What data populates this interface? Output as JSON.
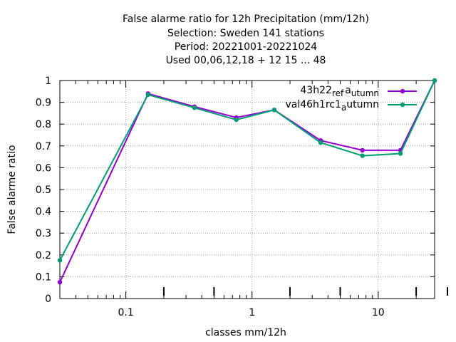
{
  "chart_data": {
    "type": "line",
    "title_lines": [
      "False alarme ratio  for 12h Precipitation (mm/12h)",
      "Selection: Sweden     141 stations",
      "Period: 20221001-20221024",
      "Used  00,06,12,18  + 12 15 ... 48"
    ],
    "xlabel": "classes mm/12h",
    "ylabel": "False alarme ratio",
    "xscale": "log",
    "xlim": [
      0.03,
      28
    ],
    "ylim": [
      0,
      1
    ],
    "grid": true,
    "legend_position": "top-right",
    "yticks": [
      "0",
      "0.1",
      "0.2",
      "0.3",
      "0.4",
      "0.5",
      "0.6",
      "0.7",
      "0.8",
      "0.9",
      "1"
    ],
    "xticks": [
      {
        "value": 0.1,
        "label": "0.1"
      },
      {
        "value": 1,
        "label": "1"
      },
      {
        "value": 10,
        "label": "10"
      }
    ],
    "series": [
      {
        "name": "43h22_ref_autumn",
        "legend_parts": [
          "43h22",
          "ref",
          "a",
          "utumn"
        ],
        "color": "#9400d3",
        "x": [
          0.03,
          0.15,
          0.35,
          0.75,
          1.5,
          3.5,
          7.5,
          15,
          28
        ],
        "y": [
          0.075,
          0.94,
          0.88,
          0.83,
          0.865,
          0.725,
          0.68,
          0.68,
          1.0
        ]
      },
      {
        "name": "val46h1rc1_autumn",
        "legend_parts": [
          "val46h1rc1",
          "a",
          "utumn"
        ],
        "color": "#009e73",
        "x": [
          0.03,
          0.15,
          0.35,
          0.75,
          1.5,
          3.5,
          7.5,
          15,
          28
        ],
        "y": [
          0.175,
          0.935,
          0.875,
          0.82,
          0.865,
          0.715,
          0.655,
          0.665,
          1.0
        ]
      }
    ]
  }
}
